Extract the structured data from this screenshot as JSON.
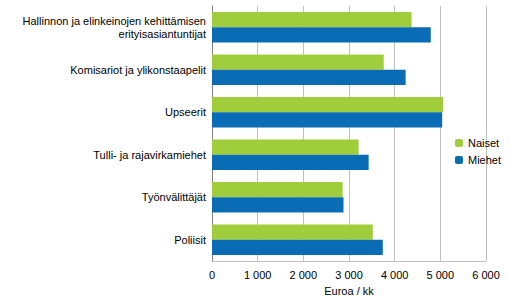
{
  "chart_data": {
    "type": "bar",
    "orientation": "horizontal",
    "categories": [
      "Hallinnon ja elinkeinojen kehittämisen\nerityisasiantuntijat",
      "Komisariot ja ylikonstaapelit",
      "Upseerit",
      "Tulli- ja rajavirkamiehet",
      "Työnvälittäjät",
      "Poliisit"
    ],
    "series": [
      {
        "name": "Naiset",
        "color": "#9fcd3b",
        "values": [
          4370,
          3760,
          5060,
          3210,
          2860,
          3520
        ]
      },
      {
        "name": "Miehet",
        "color": "#0a6cb5",
        "values": [
          4790,
          4240,
          5040,
          3430,
          2880,
          3740
        ]
      }
    ],
    "xlabel": "Euroa / kk",
    "xlim": [
      0,
      6000
    ],
    "xticks": [
      0,
      {
        "value": 1000,
        "label": "1 000"
      },
      {
        "value": 2000,
        "label": "2 000"
      },
      {
        "value": 3000,
        "label": "3 000"
      },
      {
        "value": 4000,
        "label": "4 000"
      },
      {
        "value": 5000,
        "label": "5 000"
      },
      {
        "value": 6000,
        "label": "6 000"
      }
    ],
    "grid": true,
    "legend": "right"
  }
}
